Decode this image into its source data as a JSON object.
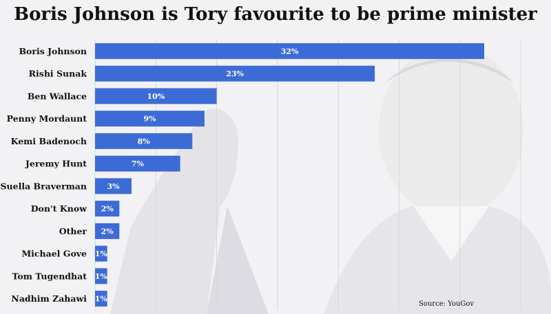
{
  "chart_data": {
    "type": "bar",
    "orientation": "horizontal",
    "title": "Boris Johnson is Tory favourite to be prime minister",
    "categories": [
      "Boris Johnson",
      "Rishi Sunak",
      "Ben Wallace",
      "Penny Mordaunt",
      "Kemi Badenoch",
      "Jeremy Hunt",
      "Suella Braverman",
      "Don't Know",
      "Other",
      "Michael Gove",
      "Tom Tugendhat",
      "Nadhim Zahawi"
    ],
    "values": [
      32,
      23,
      10,
      9,
      8,
      7,
      3,
      2,
      2,
      1,
      1,
      1
    ],
    "value_labels": [
      "32%",
      "23%",
      "10%",
      "9%",
      "8%",
      "7%",
      "3%",
      "2%",
      "2%",
      "1%",
      "1%",
      "1%"
    ],
    "xlim": [
      0,
      35
    ],
    "grid": true,
    "bar_color": "#3d6bd6",
    "source": "Source: YouGov"
  }
}
